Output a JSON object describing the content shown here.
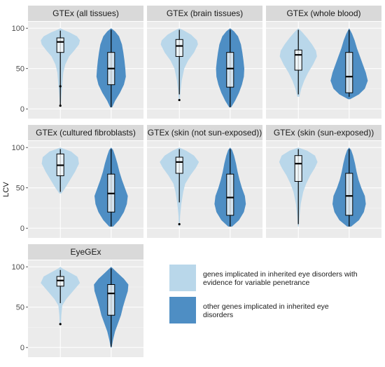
{
  "chart_data": {
    "type": "violin",
    "ylabel": "LCV",
    "yticks": [
      0,
      50,
      100
    ],
    "ylim": [
      -12,
      108
    ],
    "colors": {
      "variable": "#b9d7ea",
      "other": "#4e8ec4",
      "strip": "#d9d9d9",
      "panel": "#ebebeb"
    },
    "legend": [
      {
        "key": "variable",
        "lines": [
          "genes implicated in inherited eye disorders with",
          "evidence for variable penetrance"
        ]
      },
      {
        "key": "other",
        "lines": [
          "other genes implicated in inherited eye",
          "disorders"
        ]
      }
    ],
    "panels": [
      {
        "title": "GTEx (all tissues)",
        "variable": {
          "min": 3,
          "q1": 70,
          "median": 83,
          "q3": 88,
          "max": 97,
          "outliers": [
            28,
            4
          ],
          "density": [
            [
              3,
              0.02
            ],
            [
              15,
              0.05
            ],
            [
              30,
              0.1
            ],
            [
              45,
              0.15
            ],
            [
              55,
              0.25
            ],
            [
              65,
              0.45
            ],
            [
              72,
              0.7
            ],
            [
              80,
              0.95
            ],
            [
              85,
              1.0
            ],
            [
              90,
              0.85
            ],
            [
              95,
              0.45
            ],
            [
              98,
              0.15
            ],
            [
              100,
              0
            ]
          ]
        },
        "other": {
          "min": 2,
          "q1": 30,
          "median": 50,
          "q3": 70,
          "max": 98,
          "outliers": [],
          "density": [
            [
              2,
              0.05
            ],
            [
              10,
              0.2
            ],
            [
              20,
              0.45
            ],
            [
              30,
              0.65
            ],
            [
              40,
              0.75
            ],
            [
              50,
              0.72
            ],
            [
              60,
              0.68
            ],
            [
              70,
              0.62
            ],
            [
              80,
              0.55
            ],
            [
              90,
              0.4
            ],
            [
              96,
              0.2
            ],
            [
              100,
              0
            ]
          ]
        }
      },
      {
        "title": "GTEx (brain tissues)",
        "variable": {
          "min": 18,
          "q1": 65,
          "median": 78,
          "q3": 86,
          "max": 98,
          "outliers": [
            11
          ],
          "density": [
            [
              10,
              0.02
            ],
            [
              20,
              0.05
            ],
            [
              35,
              0.12
            ],
            [
              50,
              0.25
            ],
            [
              60,
              0.45
            ],
            [
              70,
              0.75
            ],
            [
              80,
              0.95
            ],
            [
              85,
              0.9
            ],
            [
              92,
              0.6
            ],
            [
              97,
              0.25
            ],
            [
              100,
              0
            ]
          ]
        },
        "other": {
          "min": 2,
          "q1": 27,
          "median": 50,
          "q3": 70,
          "max": 98,
          "outliers": [],
          "density": [
            [
              2,
              0.05
            ],
            [
              10,
              0.25
            ],
            [
              20,
              0.45
            ],
            [
              30,
              0.6
            ],
            [
              40,
              0.7
            ],
            [
              50,
              0.72
            ],
            [
              60,
              0.68
            ],
            [
              70,
              0.62
            ],
            [
              80,
              0.55
            ],
            [
              90,
              0.4
            ],
            [
              96,
              0.2
            ],
            [
              100,
              0
            ]
          ]
        }
      },
      {
        "title": "GTEx (whole blood)",
        "variable": {
          "min": 18,
          "q1": 48,
          "median": 67,
          "q3": 73,
          "max": 98,
          "outliers": [],
          "density": [
            [
              15,
              0.05
            ],
            [
              25,
              0.15
            ],
            [
              35,
              0.3
            ],
            [
              45,
              0.5
            ],
            [
              55,
              0.75
            ],
            [
              65,
              0.95
            ],
            [
              72,
              0.9
            ],
            [
              80,
              0.7
            ],
            [
              88,
              0.45
            ],
            [
              95,
              0.2
            ],
            [
              100,
              0
            ]
          ]
        },
        "other": {
          "min": 15,
          "q1": 20,
          "median": 40,
          "q3": 70,
          "max": 98,
          "outliers": [],
          "density": [
            [
              12,
              0.05
            ],
            [
              18,
              0.5
            ],
            [
              25,
              0.8
            ],
            [
              35,
              0.95
            ],
            [
              45,
              0.85
            ],
            [
              55,
              0.7
            ],
            [
              65,
              0.55
            ],
            [
              75,
              0.4
            ],
            [
              85,
              0.28
            ],
            [
              93,
              0.15
            ],
            [
              100,
              0
            ]
          ]
        }
      },
      {
        "title": "GTEx (cultured fibroblasts)",
        "variable": {
          "min": 45,
          "q1": 65,
          "median": 78,
          "q3": 92,
          "max": 98,
          "outliers": [],
          "density": [
            [
              43,
              0.05
            ],
            [
              50,
              0.25
            ],
            [
              60,
              0.5
            ],
            [
              70,
              0.75
            ],
            [
              80,
              0.95
            ],
            [
              88,
              0.9
            ],
            [
              95,
              0.55
            ],
            [
              100,
              0
            ]
          ]
        },
        "other": {
          "min": 2,
          "q1": 20,
          "median": 43,
          "q3": 67,
          "max": 98,
          "outliers": [],
          "density": [
            [
              2,
              0.1
            ],
            [
              10,
              0.4
            ],
            [
              20,
              0.65
            ],
            [
              30,
              0.8
            ],
            [
              40,
              0.85
            ],
            [
              50,
              0.7
            ],
            [
              60,
              0.55
            ],
            [
              70,
              0.42
            ],
            [
              80,
              0.32
            ],
            [
              90,
              0.2
            ],
            [
              97,
              0.1
            ],
            [
              100,
              0
            ]
          ]
        }
      },
      {
        "title": "GTEx (skin (not sun-exposed))",
        "variable": {
          "min": 32,
          "q1": 68,
          "median": 82,
          "q3": 88,
          "max": 98,
          "outliers": [
            5
          ],
          "density": [
            [
              2,
              0.02
            ],
            [
              15,
              0.04
            ],
            [
              30,
              0.1
            ],
            [
              45,
              0.2
            ],
            [
              55,
              0.3
            ],
            [
              65,
              0.55
            ],
            [
              75,
              0.85
            ],
            [
              82,
              1.0
            ],
            [
              90,
              0.75
            ],
            [
              96,
              0.35
            ],
            [
              100,
              0
            ]
          ]
        },
        "other": {
          "min": 2,
          "q1": 16,
          "median": 38,
          "q3": 67,
          "max": 98,
          "outliers": [],
          "density": [
            [
              2,
              0.1
            ],
            [
              10,
              0.45
            ],
            [
              20,
              0.7
            ],
            [
              30,
              0.8
            ],
            [
              40,
              0.75
            ],
            [
              50,
              0.6
            ],
            [
              60,
              0.48
            ],
            [
              70,
              0.38
            ],
            [
              80,
              0.3
            ],
            [
              90,
              0.2
            ],
            [
              97,
              0.1
            ],
            [
              100,
              0
            ]
          ]
        }
      },
      {
        "title": "GTEx (skin (sun-exposed))",
        "variable": {
          "min": 5,
          "q1": 58,
          "median": 80,
          "q3": 90,
          "max": 98,
          "outliers": [],
          "density": [
            [
              2,
              0.02
            ],
            [
              15,
              0.06
            ],
            [
              30,
              0.12
            ],
            [
              45,
              0.25
            ],
            [
              55,
              0.4
            ],
            [
              65,
              0.6
            ],
            [
              75,
              0.85
            ],
            [
              82,
              0.98
            ],
            [
              90,
              0.85
            ],
            [
              96,
              0.45
            ],
            [
              100,
              0
            ]
          ]
        },
        "other": {
          "min": 2,
          "q1": 16,
          "median": 40,
          "q3": 68,
          "max": 98,
          "outliers": [],
          "density": [
            [
              2,
              0.1
            ],
            [
              10,
              0.5
            ],
            [
              20,
              0.75
            ],
            [
              30,
              0.85
            ],
            [
              40,
              0.8
            ],
            [
              50,
              0.62
            ],
            [
              60,
              0.48
            ],
            [
              70,
              0.38
            ],
            [
              80,
              0.3
            ],
            [
              90,
              0.2
            ],
            [
              97,
              0.1
            ],
            [
              100,
              0
            ]
          ]
        }
      },
      {
        "title": "EyeGEx",
        "variable": {
          "min": 55,
          "q1": 76,
          "median": 83,
          "q3": 88,
          "max": 96,
          "outliers": [
            29
          ],
          "density": [
            [
              28,
              0.03
            ],
            [
              40,
              0.05
            ],
            [
              52,
              0.1
            ],
            [
              60,
              0.3
            ],
            [
              70,
              0.65
            ],
            [
              80,
              1.0
            ],
            [
              88,
              0.85
            ],
            [
              94,
              0.4
            ],
            [
              98,
              0.1
            ],
            [
              100,
              0
            ]
          ]
        },
        "other": {
          "min": 1,
          "q1": 40,
          "median": 67,
          "q3": 78,
          "max": 98,
          "outliers": [],
          "density": [
            [
              0,
              0.02
            ],
            [
              10,
              0.1
            ],
            [
              20,
              0.2
            ],
            [
              30,
              0.35
            ],
            [
              40,
              0.5
            ],
            [
              50,
              0.6
            ],
            [
              60,
              0.72
            ],
            [
              70,
              0.85
            ],
            [
              78,
              0.88
            ],
            [
              85,
              0.65
            ],
            [
              93,
              0.3
            ],
            [
              100,
              0
            ]
          ]
        }
      }
    ]
  }
}
